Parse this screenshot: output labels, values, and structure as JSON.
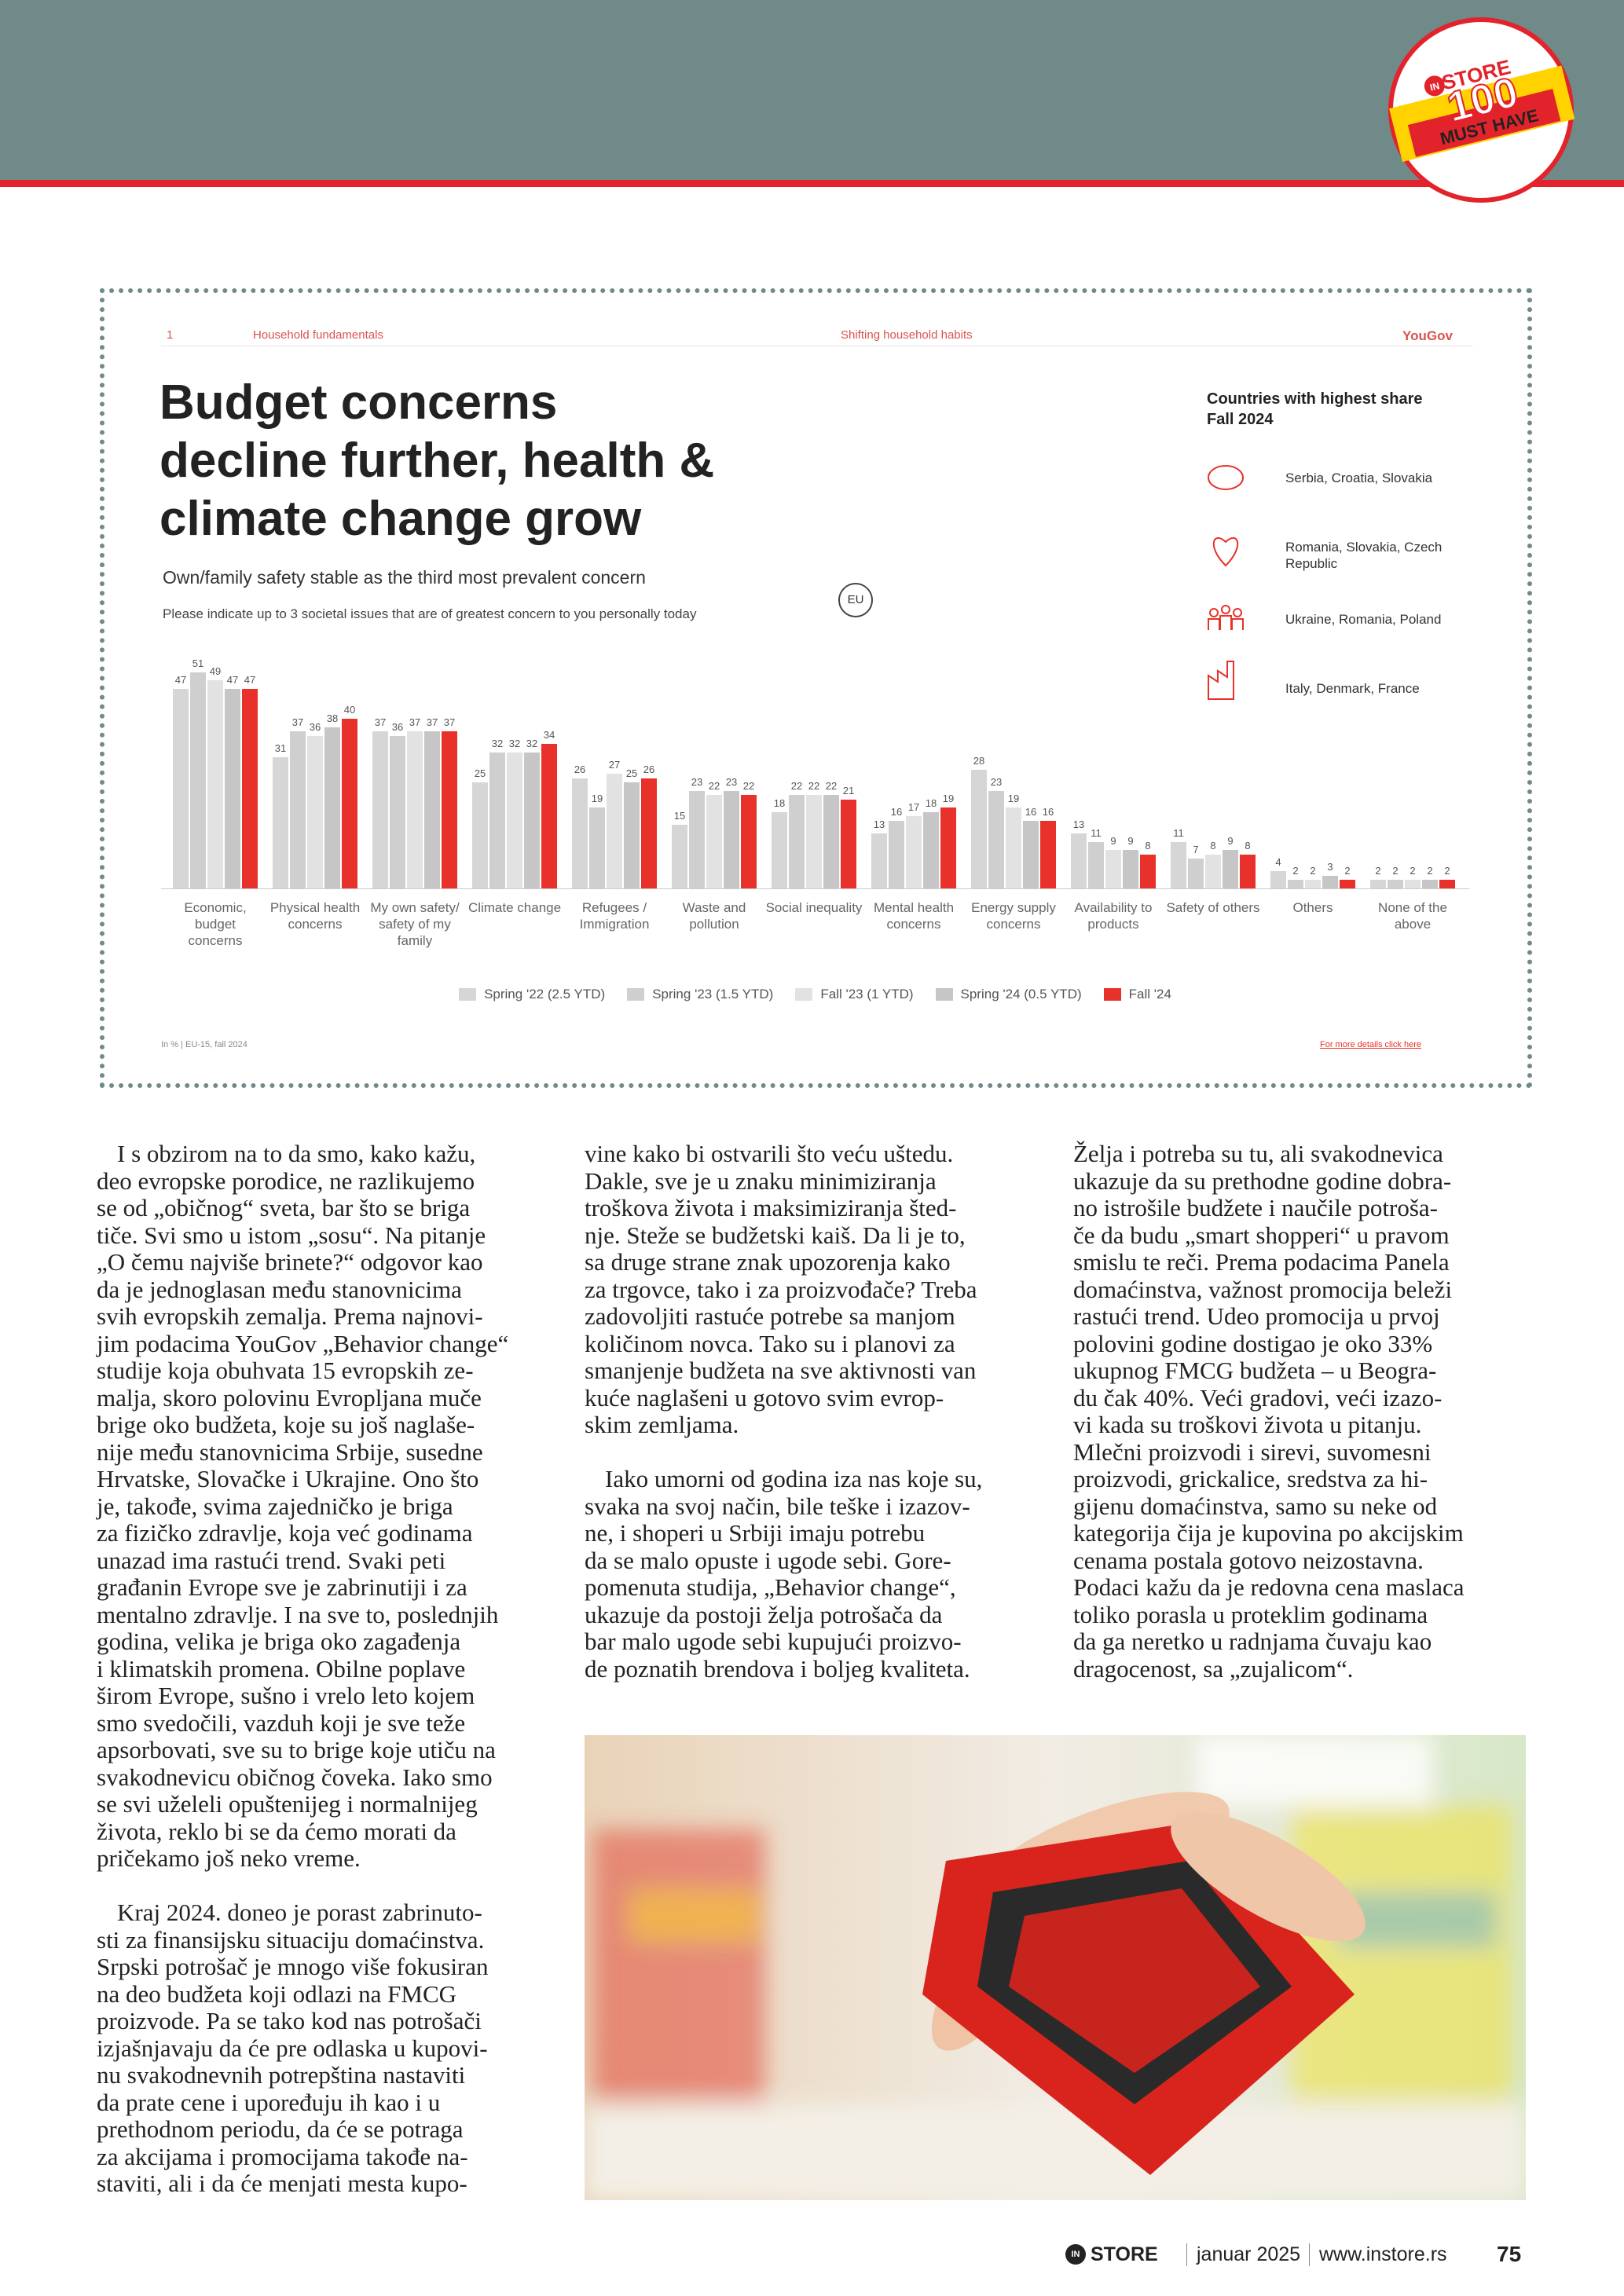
{
  "badge": {
    "logo": "IN",
    "brand": "STORE",
    "number": "100",
    "tagline": "MUST HAVE"
  },
  "chart_data": {
    "type": "bar",
    "section_number": "1",
    "section": "Household fundamentals",
    "topic": "Shifting household habits",
    "brand": "YouGov",
    "title": [
      "Budget concerns",
      "decline further, health &",
      "climate change grow"
    ],
    "subtitle": "Own/family safety stable as the third most prevalent concern",
    "question": "Please indicate up to 3 societal issues that are of greatest concern to you personally today",
    "region": "EU",
    "categories": [
      "Economic, budget concerns",
      "Physical health concerns",
      "My own safety/ safety of my family",
      "Climate change",
      "Refugees / Immigration",
      "Waste and pollution",
      "Social inequality",
      "Mental health concerns",
      "Energy supply concerns",
      "Availability to products",
      "Safety of others",
      "Others",
      "None of the above"
    ],
    "series": [
      {
        "name": "Spring '22 (2.5 YTD)",
        "color": "#d6d6d6",
        "values": [
          47,
          31,
          37,
          25,
          26,
          15,
          18,
          13,
          28,
          13,
          11,
          4,
          2
        ]
      },
      {
        "name": "Spring '23 (1.5 YTD)",
        "color": "#cfcfcf",
        "values": [
          51,
          37,
          36,
          32,
          19,
          23,
          22,
          16,
          23,
          11,
          7,
          2,
          2
        ]
      },
      {
        "name": "Fall '23 (1 YTD)",
        "color": "#e2e2e2",
        "values": [
          49,
          36,
          37,
          32,
          27,
          22,
          22,
          17,
          19,
          9,
          8,
          2,
          2
        ]
      },
      {
        "name": "Spring '24 (0.5 YTD)",
        "color": "#c6c6c6",
        "values": [
          47,
          38,
          37,
          32,
          25,
          23,
          22,
          18,
          16,
          9,
          9,
          3,
          2
        ]
      },
      {
        "name": "Fall '24",
        "color": "#e8312a",
        "values": [
          47,
          40,
          37,
          34,
          26,
          22,
          21,
          19,
          16,
          8,
          8,
          2,
          2
        ]
      }
    ],
    "side_panel": {
      "title": [
        "Countries with highest share",
        "Fall 2024"
      ],
      "rows": [
        "Serbia, Croatia, Slovakia",
        "Romania, Slovakia, Czech Republic",
        "Ukraine, Romania, Poland",
        "Italy, Denmark, France"
      ]
    },
    "source": "In % | EU-15, fall 2024",
    "link": "For more details click here"
  },
  "article": {
    "columns": [
      [
        [
          "I s obzirom na to da smo, kako kažu,",
          "deo evropske porodice, ne razlikujemo",
          "se od „običnog“ sveta, bar što se briga",
          "tiče. Svi smo u istom „sosu“. Na pitanje",
          "„O čemu najviše brinete?“ odgovor kao",
          "da je jednoglasan među stanovnicima",
          "svih evropskih zemalja. Prema najnovi-",
          "jim podacima YouGov „Behavior change“",
          "studije koja obuhvata 15 evropskih ze-",
          "malja, skoro polovinu Evropljana muče",
          "brige oko budžeta, koje su još naglaše-",
          "nije među stanovnicima Srbije, susedne",
          "Hrvatske, Slovačke i Ukrajine. Ono što",
          "je, takođe, svima zajedničko je briga",
          "za fizičko zdravlje, koja već godinama",
          "unazad ima rastući trend. Svaki peti",
          "građanin Evrope sve je zabrinutiji i za",
          "mentalno zdravlje. I na sve to, poslednjih",
          "godina, velika je briga oko zagađenja",
          "i klimatskih promena. Obilne poplave",
          "širom Evrope, sušno i vrelo leto kojem",
          "smo svedočili, vazduh koji je sve teže",
          "apsorbovati, sve su to brige koje utiču na",
          "svakodnevicu običnog čoveka. Iako smo",
          "se svi uželeli opuštenijeg i normalnijeg",
          "života, reklo bi se da ćemo morati da",
          "pričekamo još neko vreme."
        ],
        [
          "Kraj 2024. doneo je porast zabrinuto-",
          "sti za finansijsku situaciju domaćinstva.",
          "Srpski potrošač je mnogo više fokusiran",
          "na deo budžeta koji odlazi na FMCG",
          "proizvode. Pa se tako kod nas potrošači",
          "izjašnjavaju da će pre odlaska u kupovi-",
          "nu svakodnevnih potrepština nastaviti",
          "da prate cene i upoređuju ih kao i u",
          "prethodnom periodu, da će se potraga",
          "za akcijama i promocijama takođe na-",
          "staviti, ali i da će menjati mesta kupo-"
        ]
      ],
      [
        [
          "vine kako bi ostvarili što veću uštedu.",
          "Dakle, sve je u znaku minimiziranja",
          "troškova života i maksimiziranja šted-",
          "nje. Steže se budžetski kaiš. Da li je to,",
          "sa druge strane znak upozorenja kako",
          "za trgovce, tako i za proizvođače? Treba",
          "zadovoljiti rastuće potrebe sa manjom",
          "količinom novca. Tako su i planovi za",
          "smanjenje budžeta na sve aktivnosti van",
          "kuće naglašeni u gotovo svim evrop-",
          "skim zemljama."
        ],
        [
          "Iako umorni od godina iza nas koje su,",
          "svaka na svoj način, bile teške i izazov-",
          "ne, i shoperi u Srbiji imaju potrebu",
          "da se malo opuste i ugode sebi. Gore-",
          "pomenuta studija, „Behavior change“,",
          "ukazuje da postoji želja potrošača da",
          "bar malo ugode sebi kupujući proizvo-",
          "de poznatih brendova i boljeg kvaliteta."
        ]
      ],
      [
        [
          "Želja i potreba su tu, ali svakodnevica",
          "ukazuje da su prethodne godine dobra-",
          "no istrošile budžete i naučile potroša-",
          "če da budu „smart shopperi“ u pravom",
          "smislu te reči. Prema podacima Panela",
          "domaćinstva, važnost promocija beleži",
          "rastući trend. Udeo promocija u prvoj",
          "polovini godine dostigao je oko 33%",
          "ukupnog FMCG budžeta – u Beogra-",
          "du čak 40%. Veći gradovi, veći izazo-",
          "vi kada su troškovi života u pitanju.",
          "Mlečni proizvodi i sirevi, suvomesni",
          "proizvodi, grickalice, sredstva za hi-",
          "gijenu domaćinstva, samo su neke od",
          "kategorija čija je kupovina po akcijskim",
          "cenama postala gotovo neizostavna.",
          "Podaci kažu da je redovna cena maslaca",
          "toliko porasla u proteklim godinama",
          "da ga neretko u radnjama čuvaju kao",
          "dragocenost, sa „zujalicom“."
        ]
      ]
    ]
  },
  "footer": {
    "logo": "IN",
    "brand": "STORE",
    "issue": "januar 2025",
    "website": "www.instore.rs",
    "page": "75"
  }
}
